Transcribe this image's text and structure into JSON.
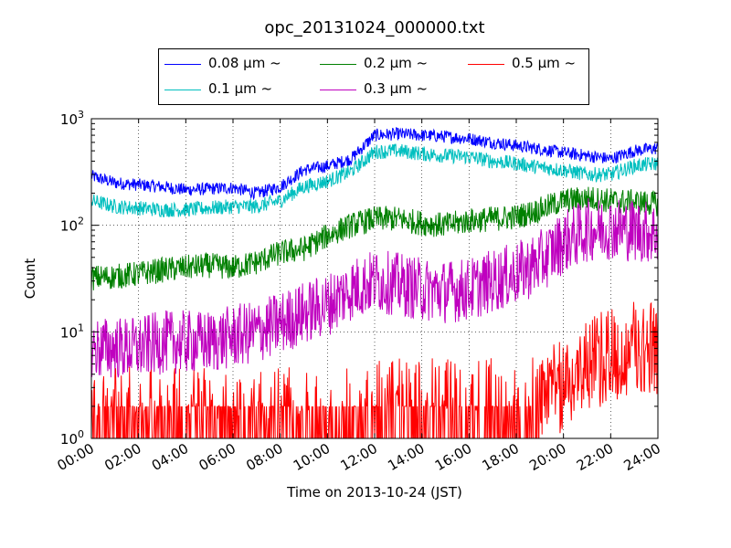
{
  "chart_data": {
    "type": "line",
    "title": "opc_20131024_000000.txt",
    "xlabel": "Time on 2013-10-24 (JST)",
    "ylabel": "Count",
    "yscale": "log",
    "ylim": [
      1,
      1000
    ],
    "xlim": [
      "00:00",
      "24:00"
    ],
    "x_ticks": [
      "00:00",
      "02:00",
      "04:00",
      "06:00",
      "08:00",
      "10:00",
      "12:00",
      "14:00",
      "16:00",
      "18:00",
      "20:00",
      "22:00",
      "24:00"
    ],
    "y_ticks": [
      "10^0",
      "10^1",
      "10^2",
      "10^3"
    ],
    "grid": true,
    "legend_position": "top-center",
    "x_hours": [
      0,
      1,
      2,
      3,
      4,
      5,
      6,
      7,
      8,
      9,
      10,
      11,
      12,
      13,
      14,
      15,
      16,
      17,
      18,
      19,
      20,
      21,
      22,
      23,
      24
    ],
    "series": [
      {
        "name": "0.08 μm ~",
        "color": "#0000ff",
        "values": [
          290,
          250,
          240,
          230,
          215,
          220,
          225,
          200,
          230,
          330,
          360,
          420,
          700,
          720,
          700,
          680,
          650,
          600,
          560,
          520,
          480,
          450,
          420,
          500,
          530
        ]
      },
      {
        "name": "0.1 μm ~",
        "color": "#00bfbf",
        "values": [
          170,
          150,
          145,
          140,
          140,
          145,
          150,
          150,
          170,
          230,
          260,
          320,
          490,
          500,
          470,
          450,
          440,
          400,
          380,
          350,
          330,
          300,
          300,
          360,
          380
        ]
      },
      {
        "name": "0.2 μm ~",
        "color": "#008000",
        "values": [
          32,
          33,
          35,
          38,
          40,
          42,
          40,
          45,
          55,
          60,
          80,
          100,
          115,
          115,
          105,
          100,
          110,
          115,
          120,
          140,
          170,
          180,
          170,
          165,
          160
        ]
      },
      {
        "name": "0.3 μm ~",
        "color": "#bf00bf",
        "values": [
          7,
          7,
          7,
          8,
          8,
          8,
          9,
          10,
          12,
          15,
          18,
          25,
          30,
          28,
          25,
          24,
          25,
          30,
          35,
          45,
          70,
          90,
          95,
          90,
          85
        ]
      },
      {
        "name": "0.5 μm ~",
        "color": "#ff0000",
        "values": [
          1.5,
          1.5,
          1.5,
          1.5,
          1.5,
          1.5,
          1.5,
          1.5,
          1.5,
          1.5,
          1.6,
          1.7,
          1.8,
          1.8,
          1.8,
          1.8,
          1.8,
          1.8,
          2,
          2.5,
          3,
          5,
          6,
          7,
          7
        ]
      }
    ]
  }
}
